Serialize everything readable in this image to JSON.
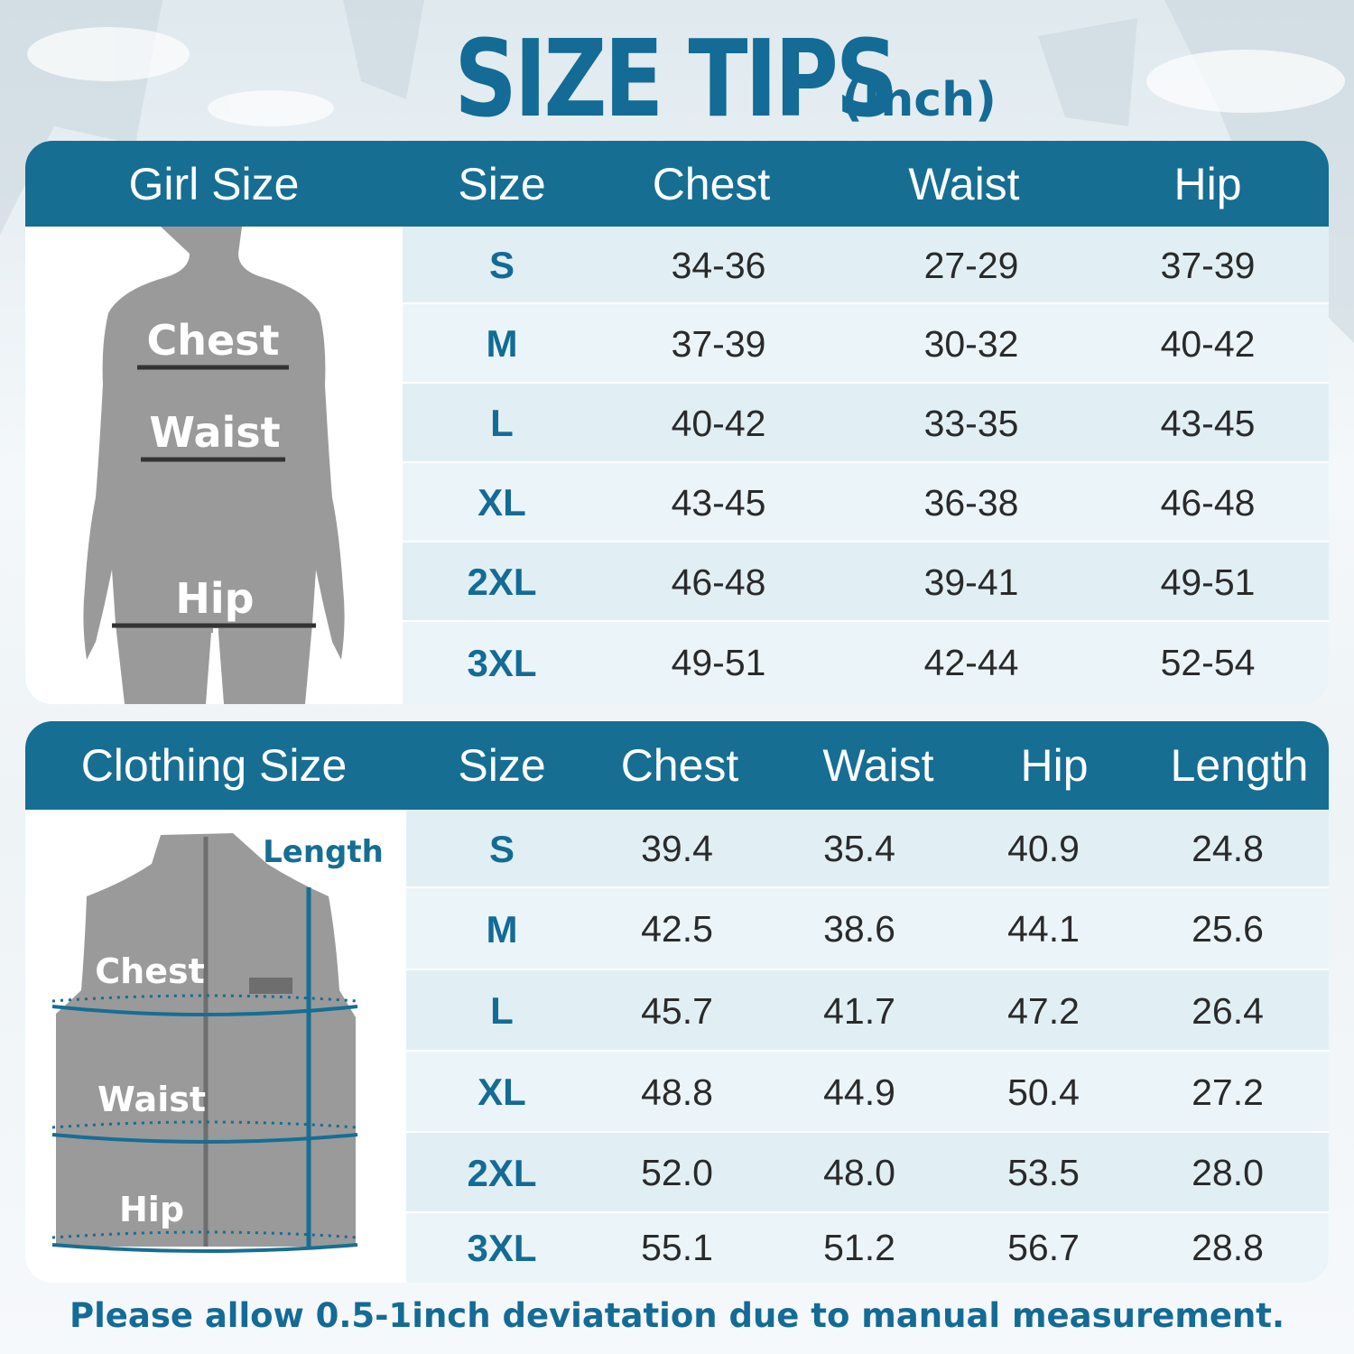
{
  "title": {
    "main": "SIZE TIPS",
    "unit": "(Inch)"
  },
  "girl_chart": {
    "headers": [
      "Girl Size",
      "Size",
      "Chest",
      "Waist",
      "Hip"
    ],
    "figure_labels": {
      "chest": "Chest",
      "waist": "Waist",
      "hip": "Hip"
    },
    "rows": [
      {
        "size": "S",
        "chest": "34-36",
        "waist": "27-29",
        "hip": "37-39"
      },
      {
        "size": "M",
        "chest": "37-39",
        "waist": "30-32",
        "hip": "40-42"
      },
      {
        "size": "L",
        "chest": "40-42",
        "waist": "33-35",
        "hip": "43-45"
      },
      {
        "size": "XL",
        "chest": "43-45",
        "waist": "36-38",
        "hip": "46-48"
      },
      {
        "size": "2XL",
        "chest": "46-48",
        "waist": "39-41",
        "hip": "49-51"
      },
      {
        "size": "3XL",
        "chest": "49-51",
        "waist": "42-44",
        "hip": "52-54"
      }
    ]
  },
  "clothing_chart": {
    "headers": [
      "Clothing Size",
      "Size",
      "Chest",
      "Waist",
      "Hip",
      "Length"
    ],
    "figure_labels": {
      "length": "Length",
      "chest": "Chest",
      "waist": "Waist",
      "hip": "Hip"
    },
    "rows": [
      {
        "size": "S",
        "chest": "39.4",
        "waist": "35.4",
        "hip": "40.9",
        "length": "24.8"
      },
      {
        "size": "M",
        "chest": "42.5",
        "waist": "38.6",
        "hip": "44.1",
        "length": "25.6"
      },
      {
        "size": "L",
        "chest": "45.7",
        "waist": "41.7",
        "hip": "47.2",
        "length": "26.4"
      },
      {
        "size": "XL",
        "chest": "48.8",
        "waist": "44.9",
        "hip": "50.4",
        "length": "27.2"
      },
      {
        "size": "2XL",
        "chest": "52.0",
        "waist": "48.0",
        "hip": "53.5",
        "length": "28.0"
      },
      {
        "size": "3XL",
        "chest": "55.1",
        "waist": "51.2",
        "hip": "56.7",
        "length": "28.8"
      }
    ]
  },
  "footer": {
    "note": "Please allow 0.5-1inch deviatation due to manual measurement."
  },
  "colors": {
    "accent": "#166e93",
    "figure": "#9a9a9a",
    "row_a": "#e1eff5",
    "row_b": "#ebf5f9"
  }
}
